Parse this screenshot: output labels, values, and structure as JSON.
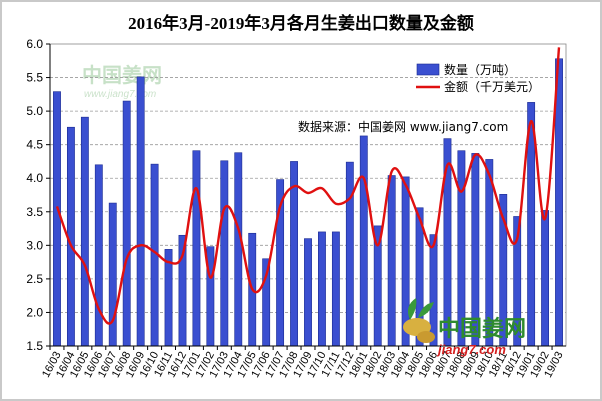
{
  "chart_data": {
    "type": "bar",
    "title": "2016年3月-2019年3月各月生姜出口数量及金额",
    "xlabel": "",
    "ylabel": "",
    "ylim": [
      1.5,
      6.0
    ],
    "yticks": [
      "1.5",
      "2.0",
      "2.5",
      "3.0",
      "3.5",
      "4.0",
      "4.5",
      "5.0",
      "5.5",
      "6.0"
    ],
    "grid": true,
    "legend_position": "top-right",
    "categories": [
      "16/03",
      "16/04",
      "16/05",
      "16/06",
      "16/07",
      "16/08",
      "16/09",
      "16/10",
      "16/11",
      "16/12",
      "17/01",
      "17/02",
      "17/03",
      "17/04",
      "17/05",
      "17/06",
      "17/07",
      "17/08",
      "17/09",
      "17/10",
      "17/11",
      "17/12",
      "18/01",
      "18/02",
      "18/03",
      "18/04",
      "18/05",
      "18/06",
      "18/07",
      "18/08",
      "18/09",
      "18/10",
      "18/11",
      "18/12",
      "19/01",
      "19/02",
      "19/03"
    ],
    "series": [
      {
        "name": "数量（万吨）",
        "kind": "bar",
        "color": "#3a4fd0",
        "values": [
          5.29,
          4.76,
          4.91,
          4.2,
          3.63,
          5.15,
          5.51,
          4.21,
          2.94,
          3.15,
          4.41,
          2.98,
          4.26,
          4.38,
          3.18,
          2.8,
          3.98,
          4.25,
          3.1,
          3.2,
          3.2,
          4.24,
          4.63,
          3.29,
          4.04,
          4.02,
          3.56,
          3.16,
          4.59,
          4.41,
          4.37,
          4.28,
          3.76,
          3.43,
          5.13,
          3.52,
          5.78
        ]
      },
      {
        "name": "金额（千万美元）",
        "kind": "line",
        "color": "#e01010",
        "values": [
          3.58,
          3.0,
          2.7,
          2.05,
          1.88,
          2.8,
          3.0,
          2.9,
          2.75,
          2.85,
          3.85,
          2.52,
          3.55,
          3.25,
          2.35,
          2.55,
          3.58,
          3.88,
          3.78,
          3.85,
          3.62,
          3.7,
          4.0,
          3.0,
          4.1,
          3.9,
          3.4,
          3.0,
          4.2,
          3.8,
          4.35,
          4.05,
          3.4,
          3.1,
          4.85,
          3.4,
          5.95
        ]
      }
    ],
    "annotation": "数据来源：中国姜网 www.jiang7.com"
  },
  "watermark": {
    "site_name": "中国姜网",
    "url": "jiang7.com",
    "faint_url": "www.jiang7.com"
  }
}
